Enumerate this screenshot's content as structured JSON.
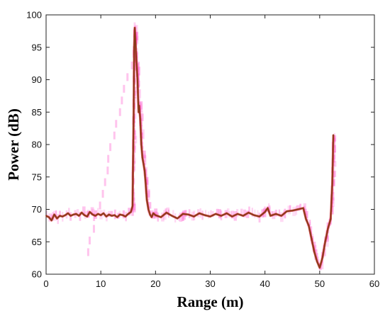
{
  "chart_data": {
    "type": "line",
    "title": "",
    "xlabel": "Range (m)",
    "ylabel": "Power (dB)",
    "xlim": [
      0,
      60
    ],
    "ylim": [
      60,
      100
    ],
    "xticks": [
      0,
      10,
      20,
      30,
      40,
      50,
      60
    ],
    "yticks": [
      60,
      65,
      70,
      75,
      80,
      85,
      90,
      95,
      100
    ],
    "grid": false,
    "legend": "none",
    "series": [
      {
        "color": "#8b3a1a",
        "highlight_color": "#d10000",
        "noise_color": "#ff55cc",
        "x": [
          0,
          0.5,
          1.0,
          1.5,
          2.0,
          2.5,
          3.0,
          3.5,
          4.0,
          4.5,
          5.0,
          5.5,
          6.0,
          6.5,
          7.0,
          7.5,
          8.0,
          8.5,
          9.0,
          9.5,
          10.0,
          10.5,
          11.0,
          11.5,
          12.0,
          12.5,
          13.0,
          13.5,
          14.0,
          14.5,
          15.0,
          15.5,
          15.8,
          16.0,
          16.1,
          16.2,
          16.35,
          16.5,
          16.7,
          16.9,
          17.0,
          17.2,
          17.4,
          17.6,
          17.8,
          18.0,
          18.2,
          18.4,
          18.7,
          19.0,
          19.3,
          19.6,
          20.0,
          21.0,
          22.0,
          23.0,
          24.0,
          25.0,
          26.0,
          27.0,
          28.0,
          29.0,
          30.0,
          31.0,
          32.0,
          33.0,
          34.0,
          35.0,
          36.0,
          37.0,
          38.0,
          39.0,
          40.0,
          40.5,
          41.0,
          42.0,
          43.0,
          44.0,
          45.0,
          46.0,
          47.0,
          47.5,
          48.0,
          48.5,
          49.0,
          49.5,
          50.0,
          50.5,
          51.0,
          51.5,
          52.0,
          52.3,
          52.5
        ],
        "y": [
          69.0,
          68.8,
          68.3,
          69.2,
          68.6,
          69.0,
          68.9,
          69.1,
          69.4,
          69.0,
          69.2,
          69.3,
          69.0,
          69.5,
          69.1,
          68.9,
          69.6,
          69.2,
          69.0,
          69.3,
          69.1,
          69.4,
          68.9,
          69.2,
          69.0,
          69.1,
          68.8,
          69.2,
          69.1,
          68.9,
          69.3,
          69.6,
          70.5,
          85.0,
          95.0,
          98.0,
          95.5,
          93.0,
          90.0,
          85.0,
          86.0,
          84.0,
          80.0,
          78.0,
          77.0,
          76.0,
          74.0,
          71.5,
          70.0,
          69.2,
          68.8,
          69.4,
          69.1,
          68.8,
          69.5,
          69.0,
          68.6,
          69.3,
          69.2,
          68.9,
          69.4,
          69.1,
          68.9,
          69.3,
          69.0,
          69.4,
          68.9,
          69.3,
          69.0,
          69.5,
          69.1,
          68.9,
          69.6,
          70.2,
          69.0,
          69.3,
          69.0,
          69.7,
          69.8,
          70.0,
          70.2,
          68.5,
          67.5,
          65.5,
          63.5,
          62.0,
          61.0,
          62.5,
          65.0,
          67.0,
          68.5,
          74.0,
          81.5
        ]
      }
    ]
  }
}
